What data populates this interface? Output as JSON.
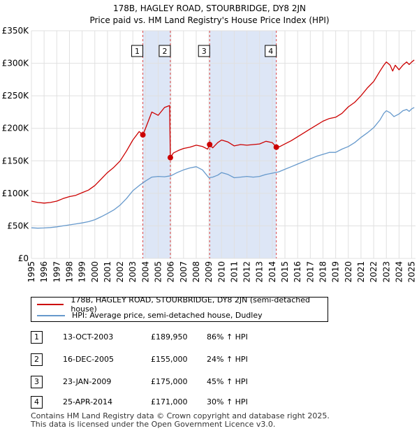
{
  "chart_data": {
    "type": "line",
    "title": "178B, HAGLEY ROAD, STOURBRIDGE, DY8 2JN",
    "subtitle": "Price paid vs. HM Land Registry's House Price Index (HPI)",
    "xlim": [
      1995,
      2025.3
    ],
    "ylim": [
      0,
      350000
    ],
    "x_ticks": [
      "1995",
      "1996",
      "1997",
      "1998",
      "1999",
      "2000",
      "2001",
      "2002",
      "2003",
      "2004",
      "2005",
      "2006",
      "2007",
      "2008",
      "2009",
      "2010",
      "2011",
      "2012",
      "2013",
      "2014",
      "2015",
      "2016",
      "2017",
      "2018",
      "2019",
      "2020",
      "2021",
      "2022",
      "2023",
      "2024",
      "2025"
    ],
    "y_ticks": [
      {
        "value": 0,
        "label": "£0"
      },
      {
        "value": 50000,
        "label": "£50K"
      },
      {
        "value": 100000,
        "label": "£100K"
      },
      {
        "value": 150000,
        "label": "£150K"
      },
      {
        "value": 200000,
        "label": "£200K"
      },
      {
        "value": 250000,
        "label": "£250K"
      },
      {
        "value": 300000,
        "label": "£300K"
      },
      {
        "value": 350000,
        "label": "£350K"
      }
    ],
    "series": [
      {
        "name": "178B, HAGLEY ROAD, STOURBRIDGE, DY8 2JN (semi-detached house)",
        "color": "#cc0000",
        "x": [
          1995.0,
          1995.5,
          1996.0,
          1996.5,
          1997.0,
          1997.5,
          1998.0,
          1998.5,
          1999.0,
          1999.5,
          2000.0,
          2000.5,
          2001.0,
          2001.5,
          2002.0,
          2002.5,
          2003.0,
          2003.5,
          2003.79,
          2004.0,
          2004.5,
          2005.0,
          2005.5,
          2005.9,
          2005.96,
          2006.2,
          2006.6,
          2007.0,
          2007.5,
          2008.0,
          2008.5,
          2008.9,
          2009.06,
          2009.3,
          2009.7,
          2010.0,
          2010.5,
          2011.0,
          2011.5,
          2012.0,
          2012.5,
          2013.0,
          2013.5,
          2014.0,
          2014.32,
          2014.6,
          2015.0,
          2015.5,
          2016.0,
          2016.5,
          2017.0,
          2017.5,
          2018.0,
          2018.5,
          2019.0,
          2019.5,
          2020.0,
          2020.5,
          2021.0,
          2021.5,
          2022.0,
          2022.5,
          2022.8,
          2023.0,
          2023.3,
          2023.5,
          2023.7,
          2024.0,
          2024.3,
          2024.6,
          2024.8,
          2025.0,
          2025.2
        ],
        "values": [
          88000,
          86000,
          85000,
          86000,
          88000,
          92000,
          95000,
          97000,
          101000,
          105000,
          112000,
          122000,
          132000,
          140000,
          150000,
          165000,
          182000,
          195000,
          189950,
          200000,
          225000,
          220000,
          232000,
          235000,
          155000,
          162000,
          166000,
          169000,
          171000,
          174000,
          172000,
          168000,
          175000,
          170000,
          178000,
          182000,
          179000,
          173000,
          175000,
          174000,
          175000,
          176000,
          180000,
          178000,
          171000,
          172000,
          176000,
          181000,
          187000,
          193000,
          199000,
          205000,
          211000,
          215000,
          217000,
          223000,
          233000,
          240000,
          250000,
          262000,
          272000,
          288000,
          297000,
          302000,
          297000,
          288000,
          297000,
          290000,
          297000,
          302000,
          298000,
          302000,
          305000
        ]
      },
      {
        "name": "HPI: Average price, semi-detached house, Dudley",
        "color": "#6699cc",
        "x": [
          1995.0,
          1995.5,
          1996.0,
          1996.5,
          1997.0,
          1997.5,
          1998.0,
          1998.5,
          1999.0,
          1999.5,
          2000.0,
          2000.5,
          2001.0,
          2001.5,
          2002.0,
          2002.5,
          2003.0,
          2003.5,
          2004.0,
          2004.5,
          2005.0,
          2005.5,
          2006.0,
          2006.5,
          2007.0,
          2007.5,
          2008.0,
          2008.5,
          2009.0,
          2009.3,
          2009.7,
          2010.0,
          2010.5,
          2011.0,
          2011.5,
          2012.0,
          2012.5,
          2013.0,
          2013.5,
          2014.0,
          2014.5,
          2015.0,
          2015.5,
          2016.0,
          2016.5,
          2017.0,
          2017.5,
          2018.0,
          2018.5,
          2019.0,
          2019.5,
          2020.0,
          2020.5,
          2021.0,
          2021.5,
          2022.0,
          2022.5,
          2022.8,
          2023.0,
          2023.3,
          2023.6,
          2024.0,
          2024.3,
          2024.6,
          2024.8,
          2025.0,
          2025.2
        ],
        "values": [
          47000,
          46500,
          46800,
          47500,
          48500,
          50000,
          51500,
          53000,
          54500,
          56500,
          59500,
          64000,
          69000,
          74500,
          82000,
          92000,
          104000,
          112000,
          119000,
          125000,
          126000,
          125500,
          127000,
          132000,
          136000,
          139000,
          141000,
          136000,
          124000,
          125000,
          128000,
          132000,
          129000,
          124000,
          125000,
          126000,
          125000,
          126000,
          129000,
          131000,
          133000,
          137000,
          141000,
          145000,
          149000,
          153000,
          157000,
          160000,
          163000,
          163000,
          168000,
          172000,
          178000,
          186000,
          193000,
          201000,
          213000,
          223000,
          227000,
          224000,
          218000,
          222000,
          227000,
          229000,
          226000,
          230000,
          232000
        ]
      }
    ],
    "sales": [
      {
        "id": "1",
        "x": 2003.79,
        "value": 189950,
        "date": "13-OCT-2003",
        "price": "£189,950",
        "hpi": "86% ↑ HPI"
      },
      {
        "id": "2",
        "x": 2005.96,
        "value": 155000,
        "date": "16-DEC-2005",
        "price": "£155,000",
        "hpi": "24% ↑ HPI"
      },
      {
        "id": "3",
        "x": 2009.06,
        "value": 175000,
        "date": "23-JAN-2009",
        "price": "£175,000",
        "hpi": "45% ↑ HPI"
      },
      {
        "id": "4",
        "x": 2014.32,
        "value": 171000,
        "date": "25-APR-2014",
        "price": "£171,000",
        "hpi": "30% ↑ HPI"
      }
    ],
    "shaded_ranges": [
      [
        2003.79,
        2005.96
      ],
      [
        2009.06,
        2014.32
      ]
    ],
    "legend_position": "bottom"
  },
  "footer": {
    "line1": "Contains HM Land Registry data © Crown copyright and database right 2025.",
    "line2": "This data is licensed under the Open Government Licence v3.0."
  },
  "colors": {
    "price_line": "#cc0000",
    "hpi_line": "#6699cc",
    "shade": "#dde6f6",
    "grid": "#e0e0e0"
  }
}
